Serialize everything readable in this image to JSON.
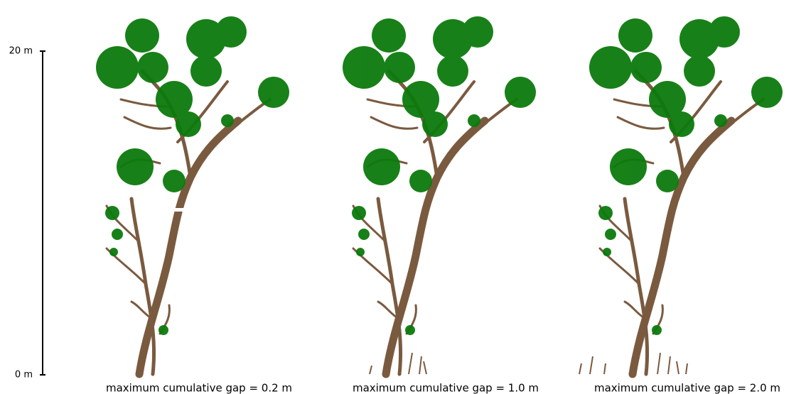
{
  "scale_bar": {
    "top_label": "20 m",
    "bottom_label": "0 m"
  },
  "panels": [
    {
      "caption": "maximum cumulative gap = 0.2 m"
    },
    {
      "caption": "maximum cumulative gap = 1.0 m"
    },
    {
      "caption": "maximum cumulative gap = 2.0 m"
    }
  ]
}
